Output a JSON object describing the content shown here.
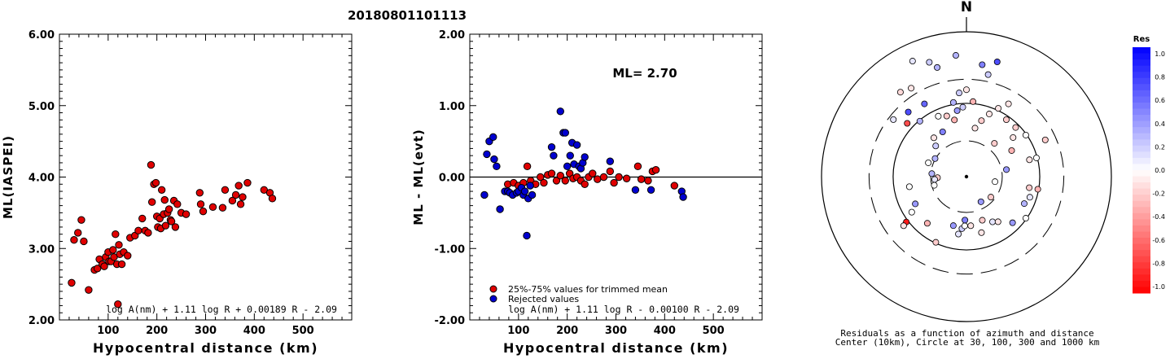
{
  "event_id": "20180801101113",
  "colors": {
    "accepted": "#e00000",
    "rejected": "#0000d0",
    "marker_stroke": "#000000"
  },
  "left_plot": {
    "ylabel": "ML(IASPEI)",
    "xlabel": "Hypocentral distance (km)",
    "formula": "log A(nm) + 1.11 log R + 0.00189 R - 2.09",
    "yticks": [
      "6.00",
      "5.00",
      "4.00",
      "3.00",
      "2.00"
    ],
    "xticks": [
      "100",
      "200",
      "300",
      "400",
      "500"
    ]
  },
  "middle_plot": {
    "ylabel": "ML - ML(evt)",
    "xlabel": "Hypocentral distance (km)",
    "ml_label": "ML= 2.70",
    "legend_accepted": "25%-75% values for trimmed mean",
    "legend_rejected": "Rejected values",
    "formula": "log A(nm) + 1.11 log R - 0.00100 R - 2.09",
    "yticks": [
      "2.00",
      "1.00",
      "0.00",
      "-1.00",
      "-2.00"
    ],
    "xticks": [
      "100",
      "200",
      "300",
      "400",
      "500"
    ]
  },
  "polar_plot": {
    "north_label": "N",
    "caption_line1": "Residuals as a function of azimuth and distance",
    "caption_line2": "Center (10km), Circle at 30, 100, 300 and 1000 km"
  },
  "colorbar": {
    "title": "Res",
    "ticks": [
      "1.0",
      "0.8",
      "0.6",
      "0.4",
      "0.2",
      "0.0",
      "-0.2",
      "-0.4",
      "-0.6",
      "-0.8",
      "-1.0"
    ]
  },
  "chart_data": [
    {
      "type": "scatter",
      "title": "",
      "xlabel": "Hypocentral distance (km)",
      "ylabel": "ML(IASPEI)",
      "xlim": [
        0,
        600
      ],
      "ylim": [
        2.0,
        6.0
      ],
      "series": [
        {
          "values": [
            [
              25,
              2.52
            ],
            [
              30,
              3.12
            ],
            [
              38,
              3.22
            ],
            [
              45,
              3.4
            ],
            [
              50,
              3.1
            ],
            [
              60,
              2.42
            ],
            [
              72,
              2.7
            ],
            [
              78,
              2.72
            ],
            [
              82,
              2.85
            ],
            [
              88,
              2.78
            ],
            [
              92,
              2.75
            ],
            [
              95,
              2.88
            ],
            [
              100,
              2.95
            ],
            [
              102,
              2.82
            ],
            [
              106,
              2.82
            ],
            [
              110,
              2.98
            ],
            [
              112,
              2.88
            ],
            [
              115,
              3.2
            ],
            [
              118,
              2.78
            ],
            [
              120,
              2.22
            ],
            [
              122,
              3.05
            ],
            [
              124,
              2.92
            ],
            [
              128,
              2.78
            ],
            [
              132,
              2.95
            ],
            [
              140,
              2.9
            ],
            [
              145,
              3.15
            ],
            [
              155,
              3.18
            ],
            [
              162,
              3.25
            ],
            [
              170,
              3.42
            ],
            [
              176,
              3.25
            ],
            [
              182,
              3.22
            ],
            [
              188,
              4.17
            ],
            [
              190,
              3.65
            ],
            [
              194,
              3.9
            ],
            [
              198,
              3.92
            ],
            [
              200,
              3.45
            ],
            [
              202,
              3.3
            ],
            [
              206,
              3.42
            ],
            [
              208,
              3.28
            ],
            [
              210,
              3.82
            ],
            [
              214,
              3.48
            ],
            [
              216,
              3.68
            ],
            [
              218,
              3.32
            ],
            [
              222,
              3.5
            ],
            [
              225,
              3.55
            ],
            [
              228,
              3.4
            ],
            [
              230,
              3.38
            ],
            [
              235,
              3.67
            ],
            [
              238,
              3.3
            ],
            [
              242,
              3.62
            ],
            [
              250,
              3.5
            ],
            [
              260,
              3.48
            ],
            [
              288,
              3.78
            ],
            [
              290,
              3.62
            ],
            [
              295,
              3.52
            ],
            [
              315,
              3.58
            ],
            [
              335,
              3.57
            ],
            [
              340,
              3.82
            ],
            [
              355,
              3.67
            ],
            [
              362,
              3.75
            ],
            [
              368,
              3.88
            ],
            [
              372,
              3.62
            ],
            [
              376,
              3.72
            ],
            [
              386,
              3.92
            ],
            [
              420,
              3.82
            ],
            [
              432,
              3.78
            ],
            [
              437,
              3.7
            ]
          ]
        }
      ]
    },
    {
      "type": "scatter",
      "title": "",
      "xlabel": "Hypocentral distance (km)",
      "ylabel": "ML - ML(evt)",
      "xlim": [
        0,
        600
      ],
      "ylim": [
        -2.0,
        2.0
      ],
      "series": [
        {
          "name": "25%-75% values for trimmed mean",
          "values": [
            [
              78,
              -0.1
            ],
            [
              90,
              -0.08
            ],
            [
              100,
              -0.12
            ],
            [
              110,
              -0.08
            ],
            [
              118,
              0.15
            ],
            [
              125,
              -0.05
            ],
            [
              135,
              -0.1
            ],
            [
              145,
              0.0
            ],
            [
              152,
              -0.08
            ],
            [
              160,
              0.03
            ],
            [
              168,
              0.05
            ],
            [
              178,
              -0.05
            ],
            [
              186,
              0.02
            ],
            [
              196,
              -0.05
            ],
            [
              205,
              0.05
            ],
            [
              212,
              -0.02
            ],
            [
              220,
              0.0
            ],
            [
              228,
              -0.05
            ],
            [
              236,
              -0.1
            ],
            [
              244,
              0.0
            ],
            [
              252,
              0.05
            ],
            [
              262,
              -0.03
            ],
            [
              275,
              0.0
            ],
            [
              288,
              0.08
            ],
            [
              296,
              -0.08
            ],
            [
              306,
              0.0
            ],
            [
              322,
              -0.02
            ],
            [
              345,
              0.15
            ],
            [
              352,
              -0.03
            ],
            [
              366,
              -0.05
            ],
            [
              375,
              0.08
            ],
            [
              382,
              0.1
            ],
            [
              420,
              -0.12
            ]
          ]
        },
        {
          "name": "Rejected values",
          "values": [
            [
              30,
              -0.25
            ],
            [
              35,
              0.32
            ],
            [
              40,
              0.5
            ],
            [
              48,
              0.56
            ],
            [
              50,
              0.25
            ],
            [
              55,
              0.15
            ],
            [
              62,
              -0.45
            ],
            [
              72,
              -0.2
            ],
            [
              78,
              -0.2
            ],
            [
              82,
              -0.22
            ],
            [
              88,
              -0.25
            ],
            [
              96,
              -0.22
            ],
            [
              100,
              -0.2
            ],
            [
              106,
              -0.15
            ],
            [
              110,
              -0.25
            ],
            [
              113,
              -0.2
            ],
            [
              117,
              -0.82
            ],
            [
              120,
              -0.3
            ],
            [
              124,
              -0.12
            ],
            [
              128,
              -0.25
            ],
            [
              168,
              0.42
            ],
            [
              172,
              0.3
            ],
            [
              186,
              0.92
            ],
            [
              192,
              0.62
            ],
            [
              196,
              0.62
            ],
            [
              200,
              0.15
            ],
            [
              206,
              0.3
            ],
            [
              210,
              0.48
            ],
            [
              214,
              0.18
            ],
            [
              220,
              0.45
            ],
            [
              224,
              0.15
            ],
            [
              228,
              0.12
            ],
            [
              232,
              0.2
            ],
            [
              236,
              0.28
            ],
            [
              288,
              0.22
            ],
            [
              340,
              -0.18
            ],
            [
              372,
              -0.18
            ],
            [
              435,
              -0.2
            ],
            [
              438,
              -0.28
            ]
          ]
        }
      ]
    },
    {
      "type": "scatter",
      "title": "",
      "xlabel": "",
      "ylabel": "",
      "legend": "colorbar Res (-1.0 to 1.0)",
      "points": [
        [
          -5,
          84,
          0.3
        ],
        [
          8,
          78,
          0.5
        ],
        [
          12,
          72,
          0.2
        ],
        [
          15,
          82,
          0.7
        ],
        [
          -15,
          78,
          0.3
        ],
        [
          -18,
          83,
          0.2
        ],
        [
          -25,
          88,
          0.1
        ],
        [
          -32,
          72,
          -0.1
        ],
        [
          -38,
          74,
          -0.15
        ],
        [
          -30,
          58,
          0.6
        ],
        [
          -42,
          60,
          0.7
        ],
        [
          -48,
          55,
          -0.7
        ],
        [
          -52,
          64,
          0.1
        ],
        [
          -40,
          50,
          0.3
        ],
        [
          -28,
          35,
          0.5
        ],
        [
          -40,
          35,
          -0.1
        ],
        [
          -70,
          28,
          0.0
        ],
        [
          -85,
          24,
          0.3
        ],
        [
          -92,
          20,
          -0.2
        ],
        [
          -95,
          22,
          0.1
        ],
        [
          -100,
          40,
          0.0
        ],
        [
          -105,
          23,
          0.0
        ],
        [
          -118,
          40,
          0.4
        ],
        [
          -123,
          45,
          0.0
        ],
        [
          -127,
          52,
          -0.9
        ],
        [
          -128,
          55,
          -0.1
        ],
        [
          -140,
          42,
          -0.3
        ],
        [
          -155,
          50,
          -0.2
        ],
        [
          -165,
          35,
          0.4
        ],
        [
          -172,
          40,
          0.1
        ],
        [
          -175,
          36,
          0.2
        ],
        [
          -178,
          34,
          0.0
        ],
        [
          -178,
          30,
          0.5
        ],
        [
          175,
          34,
          -0.1
        ],
        [
          165,
          40,
          -0.1
        ],
        [
          160,
          32,
          -0.2
        ],
        [
          150,
          36,
          0.1
        ],
        [
          145,
          38,
          -0.1
        ],
        [
          135,
          45,
          0.4
        ],
        [
          125,
          50,
          0.0
        ],
        [
          115,
          44,
          0.3
        ],
        [
          108,
          46,
          0.1
        ],
        [
          100,
          44,
          -0.2
        ],
        [
          100,
          50,
          -0.3
        ],
        [
          75,
          45,
          -0.1
        ],
        [
          75,
          50,
          0.0
        ],
        [
          65,
          60,
          -0.2
        ],
        [
          55,
          50,
          0.0
        ],
        [
          50,
          42,
          -0.1
        ],
        [
          45,
          48,
          -0.2
        ],
        [
          35,
          48,
          -0.2
        ],
        [
          30,
          58,
          -0.1
        ],
        [
          25,
          52,
          -0.1
        ],
        [
          20,
          46,
          -0.1
        ],
        [
          15,
          40,
          -0.2
        ],
        [
          10,
          34,
          -0.1
        ],
        [
          5,
          52,
          -0.3
        ],
        [
          0,
          60,
          -0.1
        ],
        [
          -5,
          58,
          0.2
        ],
        [
          -10,
          52,
          0.3
        ],
        [
          -12,
          40,
          -0.3
        ],
        [
          -18,
          44,
          -0.2
        ],
        [
          -25,
          46,
          0.0
        ],
        [
          -8,
          46,
          0.4
        ],
        [
          -3,
          48,
          0.2
        ],
        [
          40,
          30,
          -0.2
        ],
        [
          60,
          36,
          -0.3
        ],
        [
          80,
          28,
          0.4
        ],
        [
          -60,
          25,
          0.3
        ],
        [
          -45,
          30,
          0.2
        ],
        [
          100,
          20,
          0.0
        ],
        [
          130,
          22,
          -0.2
        ],
        [
          150,
          20,
          0.4
        ]
      ]
    }
  ]
}
